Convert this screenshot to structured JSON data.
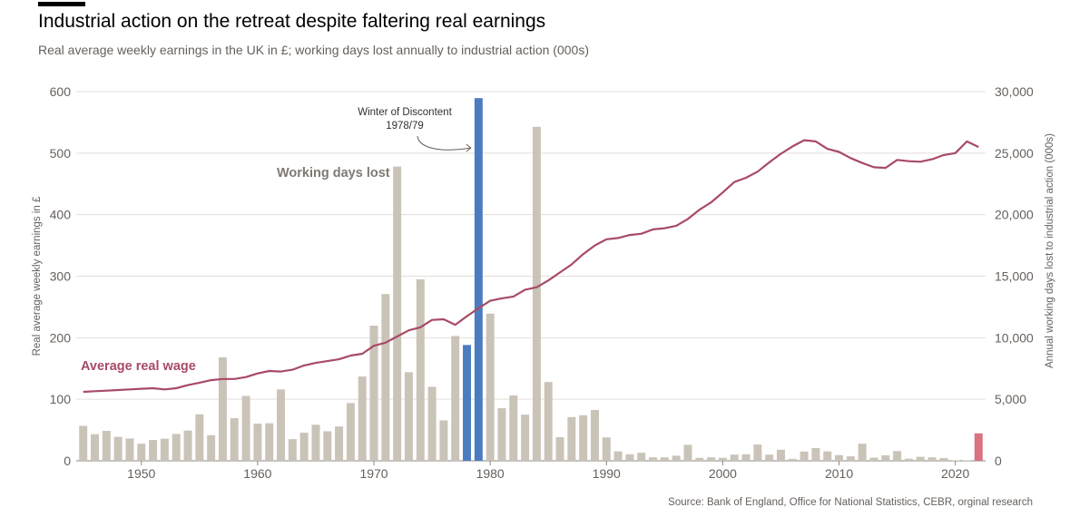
{
  "header": {
    "title": "Industrial action on the retreat despite faltering real earnings",
    "subtitle": "Real average weekly earnings in the UK in £; working days lost annually to industrial action (000s)"
  },
  "footer": {
    "source": "Source: Bank of England, Office for National Statistics, CEBR, orginal research"
  },
  "chart_data": {
    "type": "bar+line",
    "x_start": 1945,
    "x_end": 2022,
    "xlim": [
      1944.4,
      2022.6
    ],
    "x_ticks": [
      1950,
      1960,
      1970,
      1980,
      1990,
      2000,
      2010,
      2020
    ],
    "x_tick_labels": [
      "1950",
      "1960",
      "1970",
      "1980",
      "1990",
      "2000",
      "2010",
      "2020"
    ],
    "ylabel_left": "Real average weekly earnings in £",
    "ylabel_right": "Annual working days lost to industrial action (000s)",
    "ylim_left": [
      0,
      600
    ],
    "ylim_right": [
      0,
      30000
    ],
    "y_ticks_left": [
      0,
      100,
      200,
      300,
      400,
      500,
      600
    ],
    "y_tick_labels_left": [
      "0",
      "100",
      "200",
      "300",
      "400",
      "500",
      "600"
    ],
    "y_ticks_right": [
      0,
      5000,
      10000,
      15000,
      20000,
      25000,
      30000
    ],
    "y_tick_labels_right": [
      "0",
      "5,000",
      "10,000",
      "15,000",
      "20,000",
      "25,000",
      "30,000"
    ],
    "grid": true,
    "series": [
      {
        "name": "Working days lost",
        "type": "bar",
        "axis": "right",
        "color": "#cac3b8",
        "highlight_color": "#4b7cc1",
        "latest_color": "#d8737f",
        "highlight_years": [
          1978,
          1979
        ],
        "latest_years": [
          2022
        ],
        "values": [
          2840,
          2160,
          2430,
          1940,
          1810,
          1390,
          1690,
          1790,
          2180,
          2460,
          3780,
          2080,
          8410,
          3460,
          5270,
          3020,
          3050,
          5800,
          1760,
          2280,
          2930,
          2400,
          2790,
          4690,
          6850,
          10980,
          13550,
          23910,
          7200,
          14750,
          6010,
          3280,
          10140,
          9410,
          29470,
          11960,
          4270,
          5310,
          3750,
          27140,
          6400,
          1920,
          3550,
          3700,
          4130,
          1900,
          760,
          530,
          650,
          280,
          280,
          410,
          1300,
          240,
          280,
          240,
          500,
          530,
          1320,
          500,
          900,
          160,
          750,
          1040,
          760,
          460,
          360,
          1390,
          250,
          440,
          790,
          170,
          320,
          280,
          220,
          40,
          40,
          2230
        ]
      },
      {
        "name": "Average real wage",
        "type": "line",
        "axis": "left",
        "color": "#a84a66",
        "values": [
          112,
          113,
          114,
          115,
          116,
          117,
          118,
          116,
          118,
          123,
          127,
          131,
          133,
          133,
          136,
          142,
          146,
          145,
          148,
          155,
          159,
          162,
          165,
          171,
          174,
          187,
          192,
          202,
          212,
          217,
          229,
          230,
          221,
          235,
          248,
          260,
          264,
          267,
          278,
          282,
          293,
          306,
          319,
          336,
          350,
          360,
          362,
          367,
          369,
          376,
          378,
          382,
          393,
          408,
          420,
          436,
          453,
          460,
          470,
          485,
          499,
          511,
          521,
          519,
          507,
          502,
          492,
          484,
          477,
          476,
          489,
          487,
          486,
          490,
          497,
          500,
          519,
          510
        ]
      }
    ],
    "annotations": [
      {
        "text_lines": [
          "Winter of Discontent",
          "1978/79"
        ],
        "target_year": 1979
      },
      {
        "text": "Working days lost",
        "series": "Working days lost"
      },
      {
        "text": "Average real wage",
        "series": "Average real wage"
      }
    ]
  }
}
